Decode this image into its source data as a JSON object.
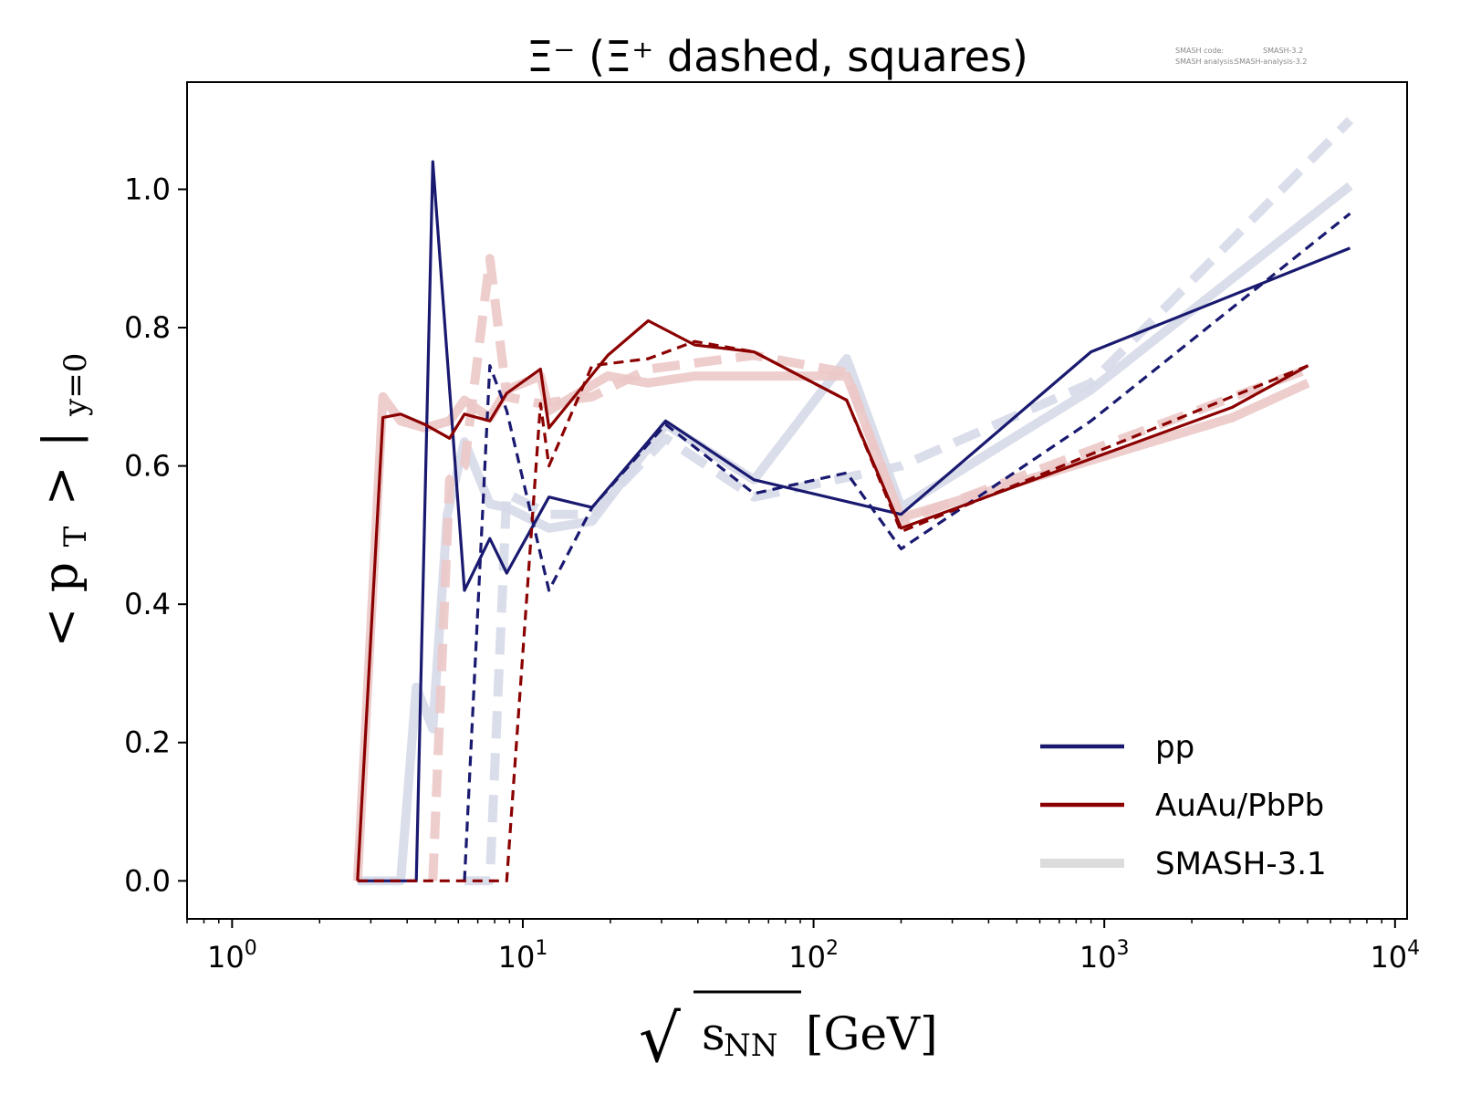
{
  "chart_data": {
    "type": "line",
    "title": "Ξ⁻ (Ξ⁺ dashed, squares)",
    "xlabel": "√sNN [GeV]",
    "xlabel_parts": {
      "sqrt": "√",
      "var": "s",
      "sub": "NN",
      "unit": "[GeV]"
    },
    "ylabel": "<pT >|y=0",
    "ylabel_parts": {
      "open": "<",
      "var": "p",
      "sub1": "T",
      "close": ">",
      "bar": "|",
      "sub2": "y=0"
    },
    "x_scale": "log",
    "xlim": [
      0.7,
      11000
    ],
    "ylim": [
      -0.055,
      1.155
    ],
    "grid": false,
    "x_ticks": [
      {
        "value": 1,
        "base": "10",
        "exp": "0"
      },
      {
        "value": 10,
        "base": "10",
        "exp": "1"
      },
      {
        "value": 100,
        "base": "10",
        "exp": "2"
      },
      {
        "value": 1000,
        "base": "10",
        "exp": "3"
      },
      {
        "value": 10000,
        "base": "10",
        "exp": "4"
      }
    ],
    "y_ticks": [
      {
        "value": 0.0,
        "label": "0.0"
      },
      {
        "value": 0.2,
        "label": "0.2"
      },
      {
        "value": 0.4,
        "label": "0.4"
      },
      {
        "value": 0.6,
        "label": "0.6"
      },
      {
        "value": 0.8,
        "label": "0.8"
      },
      {
        "value": 1.0,
        "label": "1.0"
      }
    ],
    "legend": {
      "placement": "bottom-right",
      "entries": [
        {
          "label": "pp",
          "color": "#191970",
          "style": "solid"
        },
        {
          "label": "AuAu/PbPb",
          "color": "#8b0000",
          "style": "solid"
        },
        {
          "label": "SMASH-3.1",
          "color": "#dcdcdc",
          "style": "thick"
        }
      ]
    },
    "watermark": {
      "line1_label": "SMASH code:",
      "line1_value": "SMASH-3.2",
      "line2_label": "SMASH analysis:",
      "line2_value": "SMASH-analysis-3.2"
    },
    "series": [
      {
        "system": "pp",
        "particle": "Ξ⁻",
        "color": "#191970",
        "style": "solid",
        "reference": false,
        "x": [
          2.7,
          4.3,
          4.9,
          6.3,
          7.7,
          8.8,
          12.3,
          17.3,
          31,
          62.4,
          200,
          900,
          7000
        ],
        "y": [
          0.0,
          0.0,
          1.04,
          0.42,
          0.495,
          0.445,
          0.555,
          0.54,
          0.665,
          0.58,
          0.53,
          0.765,
          0.915
        ]
      },
      {
        "system": "pp",
        "particle": "Ξ⁺",
        "color": "#191970",
        "style": "dashed",
        "reference": false,
        "x": [
          6.3,
          7.7,
          8.8,
          12.3,
          17.3,
          31,
          62.4,
          130,
          200,
          900,
          7000
        ],
        "y": [
          0.0,
          0.745,
          0.68,
          0.42,
          0.54,
          0.66,
          0.56,
          0.59,
          0.48,
          0.665,
          0.965
        ]
      },
      {
        "system": "AuAu/PbPb",
        "particle": "Ξ⁻",
        "color": "#8b0000",
        "style": "solid",
        "reference": false,
        "x": [
          2.7,
          3.3,
          3.8,
          4.6,
          5.6,
          6.3,
          7.7,
          8.8,
          11.5,
          12.3,
          19.6,
          27,
          39,
          62.4,
          130,
          200,
          2760,
          5020
        ],
        "y": [
          0.0,
          0.67,
          0.675,
          0.66,
          0.64,
          0.675,
          0.665,
          0.705,
          0.74,
          0.655,
          0.76,
          0.81,
          0.775,
          0.765,
          0.695,
          0.51,
          0.685,
          0.745
        ]
      },
      {
        "system": "AuAu/PbPb",
        "particle": "Ξ⁺",
        "color": "#8b0000",
        "style": "dashed",
        "reference": false,
        "x": [
          2.7,
          7.7,
          8.8,
          11.5,
          12.3,
          17.3,
          27,
          39,
          62.4,
          130,
          200,
          5020
        ],
        "y": [
          0.0,
          0.0,
          0.0,
          0.69,
          0.6,
          0.745,
          0.755,
          0.78,
          0.765,
          0.695,
          0.505,
          0.745
        ]
      },
      {
        "system": "SMASH-3.1 pp",
        "particle": "Ξ⁻",
        "color": "#d6d9e8",
        "style": "thick",
        "reference": true,
        "x": [
          2.7,
          3.8,
          4.3,
          4.9,
          5.5,
          6.3,
          7.7,
          8.8,
          12.3,
          17.3,
          31,
          62.4,
          130,
          200,
          900,
          7000
        ],
        "y": [
          0.0,
          0.0,
          0.28,
          0.22,
          0.53,
          0.635,
          0.545,
          0.54,
          0.51,
          0.52,
          0.66,
          0.58,
          0.755,
          0.54,
          0.71,
          1.005
        ]
      },
      {
        "system": "SMASH-3.1 pp",
        "particle": "Ξ⁺",
        "color": "#d6d9e8",
        "style": "thick-dashed",
        "reference": true,
        "x": [
          6.3,
          7.7,
          8.8,
          12.3,
          17.3,
          31,
          62.4,
          200,
          900,
          7000
        ],
        "y": [
          0.0,
          0.0,
          0.56,
          0.53,
          0.53,
          0.64,
          0.555,
          0.6,
          0.72,
          1.1
        ]
      },
      {
        "system": "SMASH-3.1 AuAu/PbPb",
        "particle": "Ξ⁻",
        "color": "#ecc8c8",
        "style": "thick",
        "reference": true,
        "x": [
          2.7,
          3.3,
          3.8,
          4.6,
          5.6,
          6.3,
          7.7,
          8.8,
          11.5,
          12.3,
          19.6,
          27,
          39,
          62.4,
          130,
          200,
          2760,
          5020
        ],
        "y": [
          0.0,
          0.7,
          0.665,
          0.655,
          0.665,
          0.695,
          0.67,
          0.71,
          0.73,
          0.68,
          0.73,
          0.72,
          0.73,
          0.73,
          0.73,
          0.525,
          0.67,
          0.72
        ]
      },
      {
        "system": "SMASH-3.1 AuAu/PbPb",
        "particle": "Ξ⁺",
        "color": "#ecc8c8",
        "style": "thick-dashed",
        "reference": true,
        "x": [
          4.9,
          5.6,
          6.3,
          7.7,
          8.8,
          11.5,
          17.3,
          27,
          62.4,
          130,
          200,
          5020
        ],
        "y": [
          0.0,
          0.58,
          0.6,
          0.9,
          0.7,
          0.69,
          0.7,
          0.74,
          0.76,
          0.735,
          0.52,
          0.74
        ]
      }
    ]
  }
}
